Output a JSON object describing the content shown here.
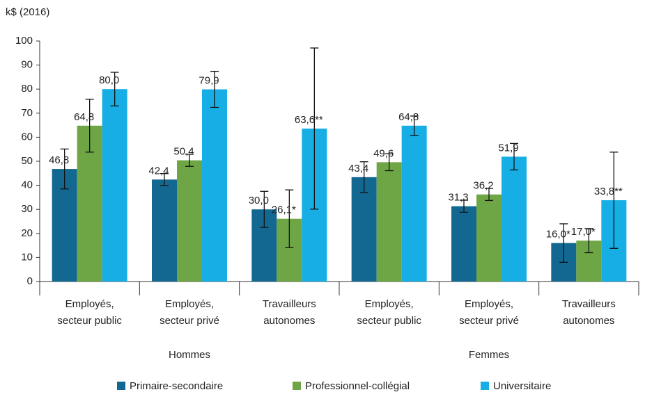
{
  "chart_data": {
    "type": "bar",
    "y_axis_label": "k$ (2016)",
    "categories": [
      [
        "Employés,",
        "secteur public"
      ],
      [
        "Employés,",
        "secteur privé"
      ],
      [
        "Travailleurs",
        "autonomes"
      ],
      [
        "Employés,",
        "secteur public"
      ],
      [
        "Employés,",
        "secteur privé"
      ],
      [
        "Travailleurs",
        "autonomes"
      ]
    ],
    "groups": [
      "Hommes",
      "Femmes"
    ],
    "series": [
      {
        "name": "Primaire-secondaire",
        "color": "#136891",
        "values": [
          46.8,
          42.4,
          30.0,
          43.4,
          31.3,
          16.0
        ],
        "value_labels": [
          "46,8",
          "42,4",
          "30,0",
          "43,4",
          "31,3",
          "16,0*"
        ],
        "errors": [
          8.3,
          2.5,
          7.5,
          6.4,
          2.5,
          8
        ]
      },
      {
        "name": "Professionnel-collégial",
        "color": "#6ea646",
        "values": [
          64.8,
          50.4,
          26.1,
          49.6,
          36.2,
          17.0
        ],
        "value_labels": [
          "64,8",
          "50,4",
          "26,1*",
          "49,6",
          "36,2",
          "17,0*"
        ],
        "errors": [
          11,
          2.5,
          12,
          3.5,
          2.5,
          5
        ]
      },
      {
        "name": "Universitaire",
        "color": "#16aee4",
        "values": [
          80.0,
          79.9,
          63.6,
          64.8,
          51.9,
          33.8
        ],
        "value_labels": [
          "80,0",
          "79,9",
          "63,6**",
          "64,8",
          "51,9",
          "33,8**"
        ],
        "errors": [
          7,
          7.5,
          33.5,
          4,
          5.5,
          20
        ]
      }
    ],
    "ylim": [
      0,
      100
    ],
    "yticks": [
      0,
      10,
      20,
      30,
      40,
      50,
      60,
      70,
      80,
      90,
      100
    ],
    "grid": false
  }
}
